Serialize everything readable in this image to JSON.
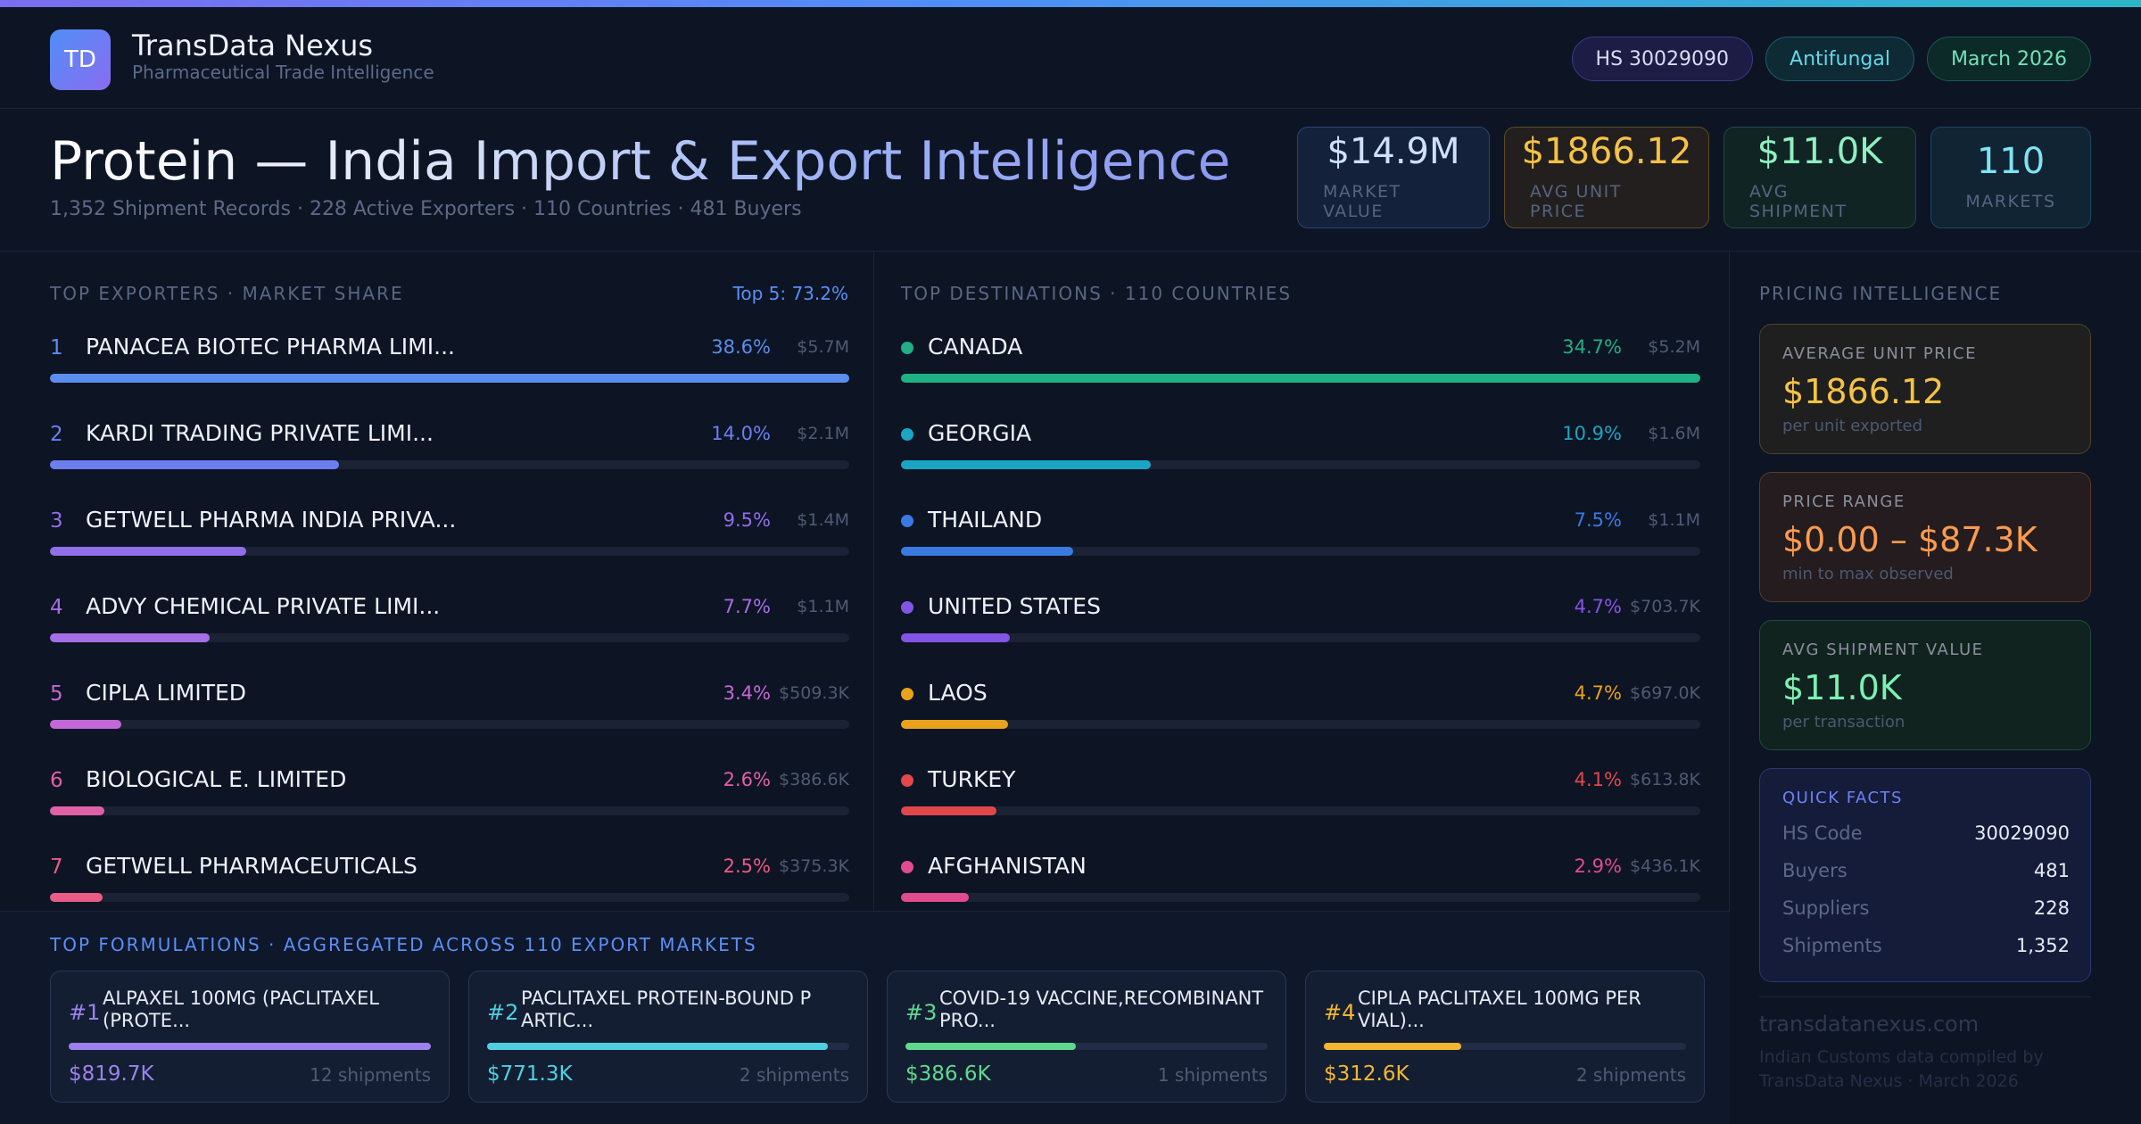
{
  "brand": {
    "logo_text": "TD",
    "name": "TransData Nexus",
    "tagline": "Pharmaceutical Trade Intelligence"
  },
  "chips": [
    "HS 30029090",
    "Antifungal",
    "March 2026"
  ],
  "title": "Protein — India Import & Export Intelligence",
  "subtitle": "1,352 Shipment Records · 228 Active Exporters · 110 Countries · 481 Buyers",
  "kpis": [
    {
      "value": "$14.9M",
      "label": "MARKET VALUE"
    },
    {
      "value": "$1866.12",
      "label": "AVG UNIT PRICE"
    },
    {
      "value": "$11.0K",
      "label": "AVG SHIPMENT"
    },
    {
      "value": "110",
      "label": "MARKETS"
    }
  ],
  "exporters": {
    "title": "TOP EXPORTERS · MARKET SHARE",
    "top5": "Top 5: 73.2%",
    "rows": [
      {
        "rank": "1",
        "name": "PANACEA BIOTEC PHARMA LIMI...",
        "pct": "38.6%",
        "amount": "$5.7M",
        "share": 1.0,
        "color": "#5b8dee"
      },
      {
        "rank": "2",
        "name": "KARDI TRADING PRIVATE LIMI...",
        "pct": "14.0%",
        "amount": "$2.1M",
        "share": 0.362,
        "color": "#6d7ef0"
      },
      {
        "rank": "3",
        "name": "GETWELL PHARMA INDIA PRIVA...",
        "pct": "9.5%",
        "amount": "$1.4M",
        "share": 0.246,
        "color": "#8f6ee8"
      },
      {
        "rank": "4",
        "name": "ADVY CHEMICAL PRIVATE LIMI...",
        "pct": "7.7%",
        "amount": "$1.1M",
        "share": 0.2,
        "color": "#a66ee6"
      },
      {
        "rank": "5",
        "name": "CIPLA LIMITED",
        "pct": "3.4%",
        "amount": "$509.3K",
        "share": 0.089,
        "color": "#c467d8"
      },
      {
        "rank": "6",
        "name": "BIOLOGICAL E. LIMITED",
        "pct": "2.6%",
        "amount": "$386.6K",
        "share": 0.068,
        "color": "#e060a5"
      },
      {
        "rank": "7",
        "name": "GETWELL PHARMACEUTICALS",
        "pct": "2.5%",
        "amount": "$375.3K",
        "share": 0.066,
        "color": "#e95c86"
      }
    ]
  },
  "destinations": {
    "title": "TOP DESTINATIONS · 110 COUNTRIES",
    "rows": [
      {
        "name": "CANADA",
        "pct": "34.7%",
        "amount": "$5.2M",
        "share": 1.0,
        "color": "#1fb083"
      },
      {
        "name": "GEORGIA",
        "pct": "10.9%",
        "amount": "$1.6M",
        "share": 0.312,
        "color": "#1aa5c2"
      },
      {
        "name": "THAILAND",
        "pct": "7.5%",
        "amount": "$1.1M",
        "share": 0.215,
        "color": "#3b79e2"
      },
      {
        "name": "UNITED STATES",
        "pct": "4.7%",
        "amount": "$703.7K",
        "share": 0.136,
        "color": "#8455e4"
      },
      {
        "name": "LAOS",
        "pct": "4.7%",
        "amount": "$697.0K",
        "share": 0.134,
        "color": "#e9a21b"
      },
      {
        "name": "TURKEY",
        "pct": "4.1%",
        "amount": "$613.8K",
        "share": 0.119,
        "color": "#e2474c"
      },
      {
        "name": "AFGHANISTAN",
        "pct": "2.9%",
        "amount": "$436.1K",
        "share": 0.085,
        "color": "#e04b8f"
      }
    ]
  },
  "formulations": {
    "title": "TOP FORMULATIONS · AGGREGATED ACROSS 110 EXPORT MARKETS",
    "cards": [
      {
        "rank": "#1",
        "name": "ALPAXEL 100MG (PACLITAXEL (PROTE...",
        "value": "$819.7K",
        "shipments": "12 shipments",
        "share": 1.0,
        "color": "#9b82ec"
      },
      {
        "rank": "#2",
        "name": "PACLITAXEL PROTEIN-BOUND P ARTIC...",
        "value": "$771.3K",
        "shipments": "2 shipments",
        "share": 0.94,
        "color": "#4fd0e2"
      },
      {
        "rank": "#3",
        "name": "COVID-19 VACCINE,RECOMBINANT PRO...",
        "value": "$386.6K",
        "shipments": "1 shipments",
        "share": 0.47,
        "color": "#5fd98d"
      },
      {
        "rank": "#4",
        "name": "CIPLA PACLITAXEL 100MG PER VIAL)...",
        "value": "$312.6K",
        "shipments": "2 shipments",
        "share": 0.38,
        "color": "#f2b72f"
      }
    ]
  },
  "pricing": {
    "title": "PRICING INTELLIGENCE",
    "avg_unit": {
      "label": "AVERAGE UNIT PRICE",
      "value": "$1866.12",
      "note": "per unit exported"
    },
    "range": {
      "label": "PRICE RANGE",
      "value": "$0.00 – $87.3K",
      "note": "min to max observed"
    },
    "avg_shipment": {
      "label": "AVG SHIPMENT VALUE",
      "value": "$11.0K",
      "note": "per transaction"
    },
    "quick_facts": {
      "label": "QUICK FACTS",
      "items": [
        {
          "k": "HS Code",
          "v": "30029090"
        },
        {
          "k": "Buyers",
          "v": "481"
        },
        {
          "k": "Suppliers",
          "v": "228"
        },
        {
          "k": "Shipments",
          "v": "1,352"
        }
      ]
    },
    "site": "transdatanexus.com",
    "credit": "Indian Customs data compiled by TransData Nexus · March 2026"
  }
}
